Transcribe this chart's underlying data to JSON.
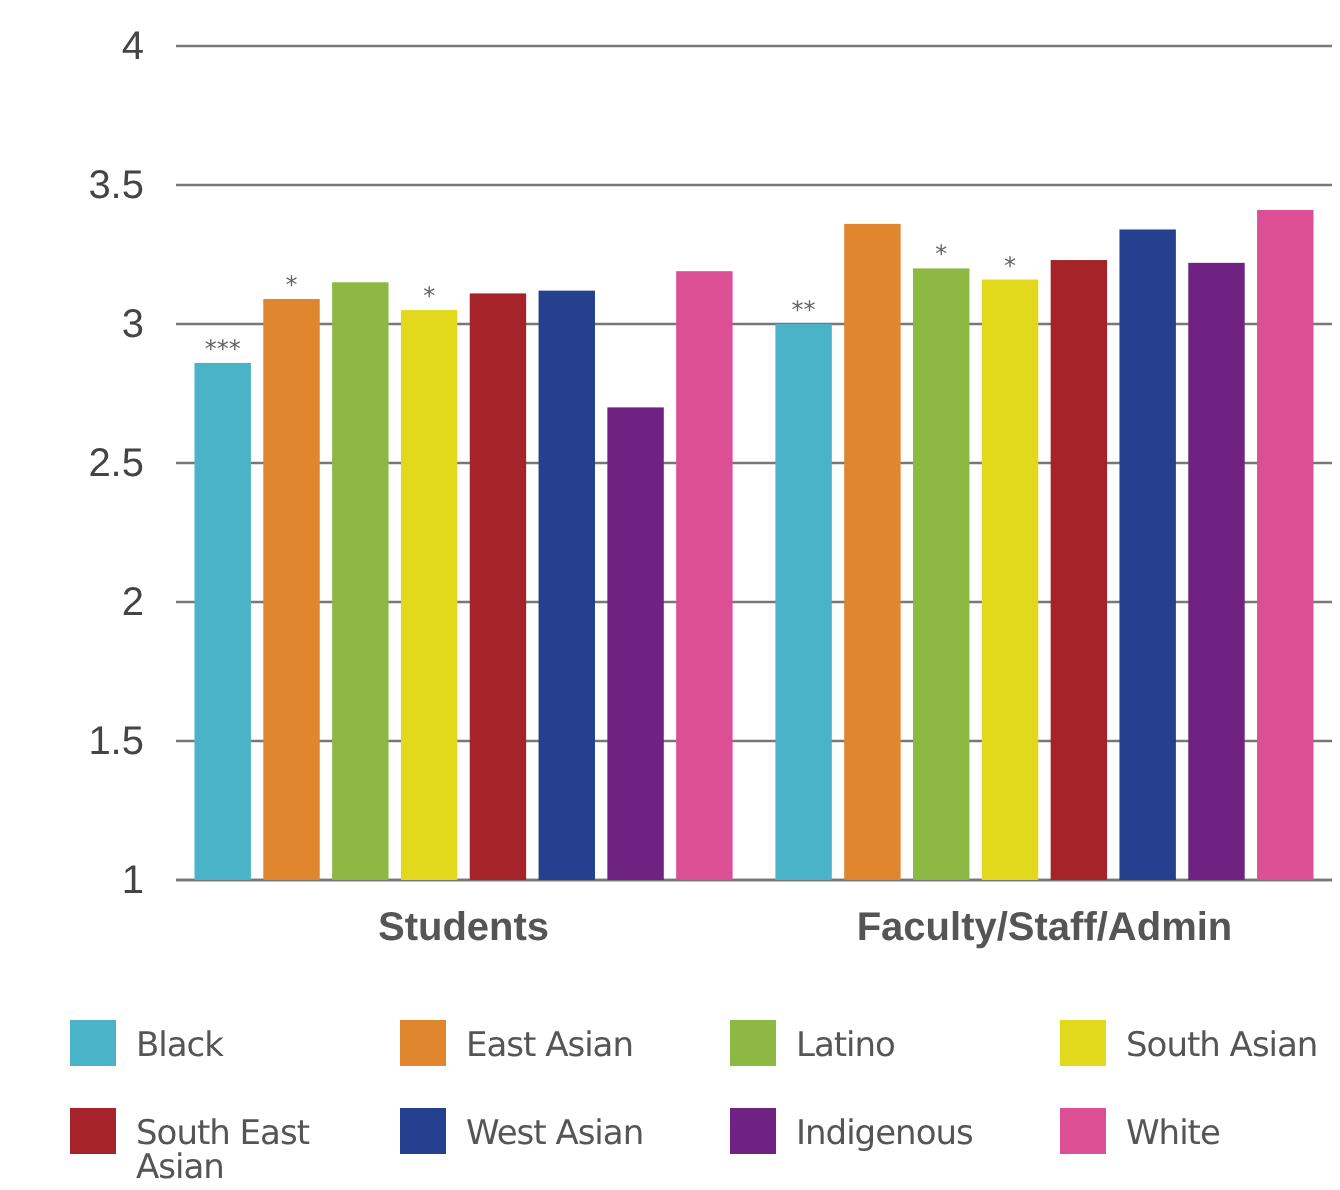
{
  "chart_data": {
    "type": "bar",
    "categories": [
      "Students",
      "Faculty/Staff/Admin"
    ],
    "series": [
      {
        "name": "Black",
        "color": "#4bb3c8",
        "values": [
          2.86,
          3.0
        ],
        "value_labels": [
          "***",
          "**"
        ]
      },
      {
        "name": "East Asian",
        "color": "#e0862e",
        "values": [
          3.09,
          3.36
        ],
        "value_labels": [
          "*",
          null
        ]
      },
      {
        "name": "Latino",
        "color": "#8db844",
        "values": [
          3.15,
          3.2
        ],
        "value_labels": [
          null,
          "*"
        ]
      },
      {
        "name": "South Asian",
        "color": "#e2d91c",
        "values": [
          3.05,
          3.16
        ],
        "value_labels": [
          "*",
          "*"
        ]
      },
      {
        "name": "South East Asian",
        "color": "#a6232a",
        "values": [
          3.11,
          3.23
        ]
      },
      {
        "name": "West Asian",
        "color": "#24408e",
        "values": [
          3.12,
          3.34
        ]
      },
      {
        "name": "Indigenous",
        "color": "#702283",
        "values": [
          2.7,
          3.22
        ]
      },
      {
        "name": "White",
        "color": "#dc4f94",
        "values": [
          3.19,
          3.41
        ]
      }
    ],
    "ylim": [
      1,
      4
    ],
    "yticks": [
      1,
      1.5,
      2,
      2.5,
      3,
      3.5,
      4
    ],
    "grid": "y",
    "legend": "bottom"
  }
}
